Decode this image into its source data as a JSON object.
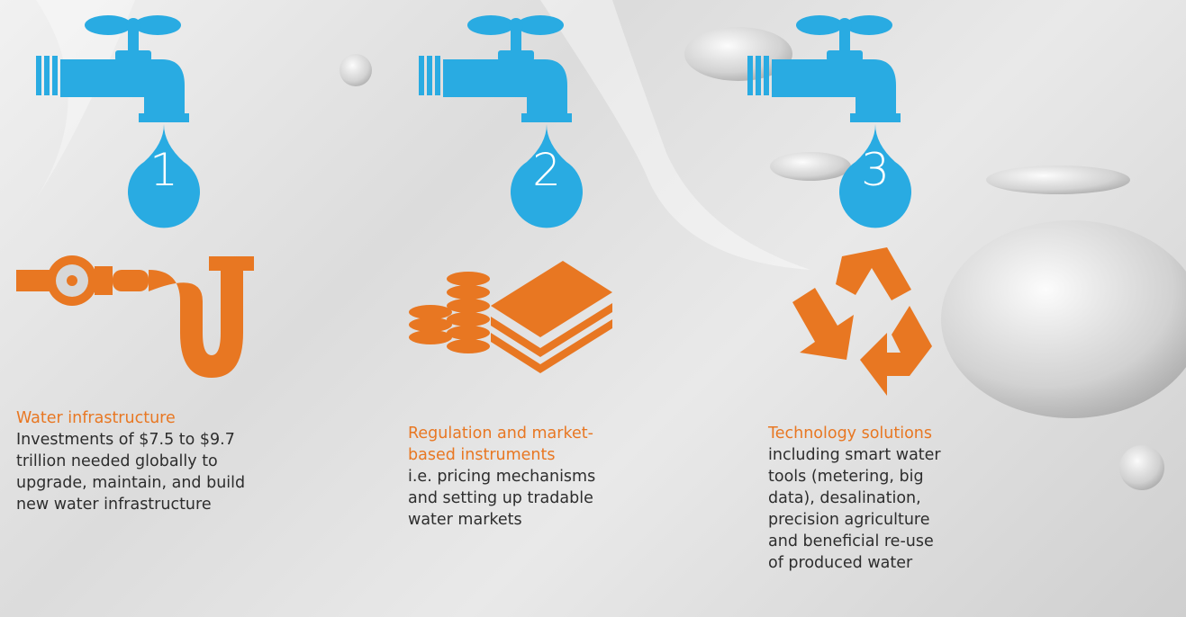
{
  "items": [
    {
      "number": "1",
      "title": [
        "Water infrastructure"
      ],
      "description": [
        "Investments of $7.5 to $9.7",
        "trillion needed globally to",
        "upgrade, maintain, and build",
        "new water infrastructure"
      ]
    },
    {
      "number": "2",
      "title": [
        "Regulation and market-",
        "based instruments"
      ],
      "description": [
        "i.e. pricing mechanisms",
        "and setting up tradable",
        "water markets"
      ]
    },
    {
      "number": "3",
      "title": [
        "Technology solutions"
      ],
      "description": [
        "including smart water",
        "tools (metering, big",
        "data), desalination,",
        "precision agriculture",
        "and beneficial re-use",
        "of produced water"
      ]
    }
  ]
}
